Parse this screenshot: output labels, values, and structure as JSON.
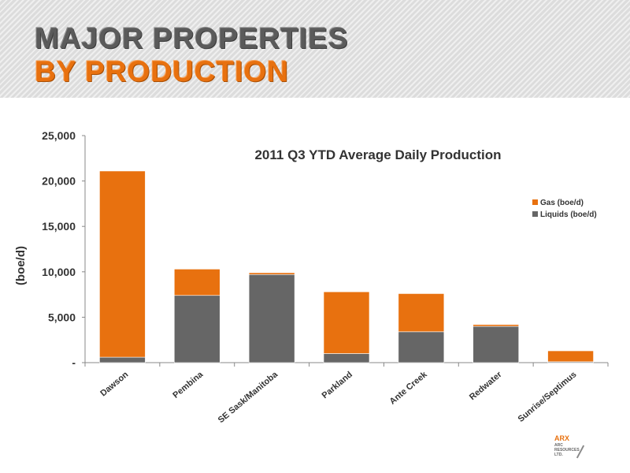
{
  "header": {
    "line1": "MAJOR PROPERTIES",
    "line2": "BY PRODUCTION"
  },
  "logo": {
    "main": "ARX",
    "sub": "ARC RESOURCES LTD."
  },
  "colors": {
    "gas": "#e8710f",
    "liquids": "#666666",
    "axis": "#888888",
    "text": "#333333"
  },
  "chart_data": {
    "type": "bar",
    "stacked": true,
    "title": "2011 Q3 YTD Average Daily Production",
    "xlabel": "",
    "ylabel": "(boe/d)",
    "ylim": [
      0,
      25000
    ],
    "yticks": [
      0,
      5000,
      10000,
      15000,
      20000,
      25000
    ],
    "ytick_labels": [
      "-",
      "5,000",
      "10,000",
      "15,000",
      "20,000",
      "25,000"
    ],
    "grid": false,
    "legend_position": "right",
    "categories": [
      "Dawson",
      "Pembina",
      "SE Sask/Manitoba",
      "Parkland",
      "Ante Creek",
      "Redwater",
      "Sunrise/Septimus"
    ],
    "series": [
      {
        "name": "Liquids (boe/d)",
        "color": "#666666",
        "values": [
          600,
          7400,
          9700,
          1000,
          3400,
          4000,
          100
        ]
      },
      {
        "name": "Gas (boe/d)",
        "color": "#e8710f",
        "values": [
          20500,
          2900,
          200,
          6800,
          4200,
          200,
          1200
        ]
      }
    ]
  }
}
